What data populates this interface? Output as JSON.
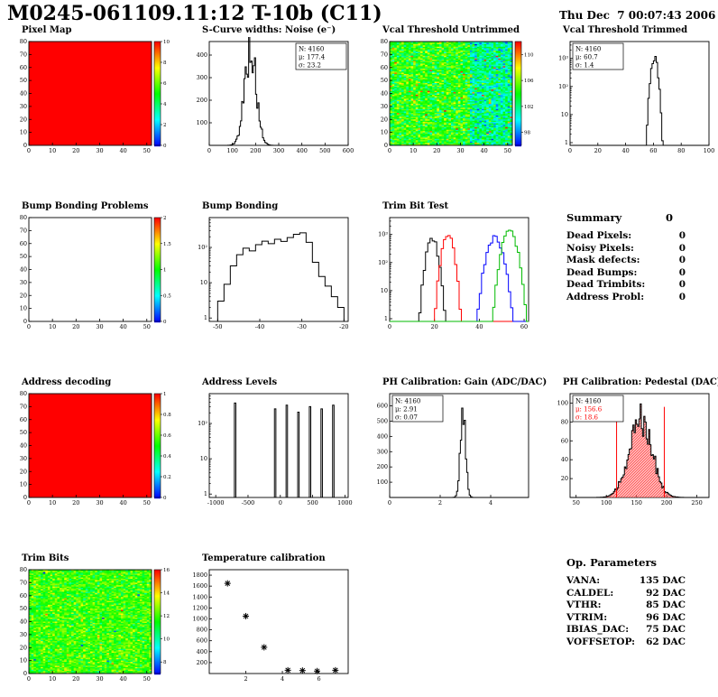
{
  "header": {
    "title": "M0245-061109.11:12 T-10b (C11)",
    "datetime": "Thu Dec  7 00:07:43 2006"
  },
  "summary": {
    "title": "Summary",
    "total": "0",
    "rows": [
      {
        "label": "Dead Pixels:",
        "value": "0"
      },
      {
        "label": "Noisy Pixels:",
        "value": "0"
      },
      {
        "label": "Mask defects:",
        "value": "0"
      },
      {
        "label": "Dead Bumps:",
        "value": "0"
      },
      {
        "label": "Dead Trimbits:",
        "value": "0"
      },
      {
        "label": "Address Probl:",
        "value": "0"
      }
    ]
  },
  "op_parameters": {
    "title": "Op. Parameters",
    "rows": [
      {
        "label": "VANA:",
        "value": "135 DAC"
      },
      {
        "label": "CALDEL:",
        "value": "92 DAC"
      },
      {
        "label": "VTHR:",
        "value": "85 DAC"
      },
      {
        "label": "VTRIM:",
        "value": "96 DAC"
      },
      {
        "label": "IBIAS_DAC:",
        "value": "75 DAC"
      },
      {
        "label": "VOFFSETOP:",
        "value": "62 DAC"
      }
    ]
  },
  "colors": {
    "accent_red": "#ff0000"
  },
  "chart_data": [
    {
      "id": "pixel-map",
      "title": "Pixel Map",
      "type": "heatmap",
      "fill": "solid",
      "x_range": [
        0,
        52
      ],
      "y_range": [
        0,
        80
      ],
      "xticks": [
        0,
        10,
        20,
        30,
        40,
        50
      ],
      "yticks": [
        0,
        10,
        20,
        30,
        40,
        50,
        60,
        70,
        80
      ],
      "colorbar": {
        "range": [
          0,
          10
        ],
        "ticks": [
          0,
          2,
          4,
          6,
          8,
          10
        ]
      }
    },
    {
      "id": "scurve-noise",
      "title": "S-Curve widths: Noise (e⁻)",
      "type": "hist",
      "x_range": [
        0,
        600
      ],
      "y_range": [
        0,
        460
      ],
      "xticks": [
        0,
        100,
        200,
        300,
        400,
        500,
        600
      ],
      "yticks": [
        100,
        200,
        300,
        400
      ],
      "bins": 120,
      "seed": 5,
      "gauss": {
        "mu": 177.4,
        "sigma": 25,
        "peak": 430
      },
      "stats": {
        "N": "4160",
        "mu": "177.4",
        "sigma": "23.2",
        "pos": "tr"
      }
    },
    {
      "id": "vcal-threshold-untrimmed",
      "title": "Vcal Threshold Untrimmed",
      "type": "heatmap",
      "fill": "noise-vcal",
      "seed": 11,
      "x_range": [
        0,
        52
      ],
      "y_range": [
        0,
        80
      ],
      "xticks": [
        0,
        10,
        20,
        30,
        40,
        50
      ],
      "yticks": [
        0,
        10,
        20,
        30,
        40,
        50,
        60,
        70,
        80
      ],
      "colorbar": {
        "range": [
          96,
          112
        ],
        "ticks": [
          98,
          102,
          106,
          110
        ]
      }
    },
    {
      "id": "vcal-threshold-trimmed",
      "title": "Vcal Threshold Trimmed",
      "type": "hist",
      "ylog": true,
      "x_range": [
        0,
        100
      ],
      "y_range": [
        0.8,
        4000
      ],
      "xticks": [
        0,
        20,
        40,
        60,
        80,
        100
      ],
      "yticks_log": [
        "1",
        "10",
        "10²",
        "10³"
      ],
      "bins": 100,
      "seed": 6,
      "gauss": {
        "mu": 60.7,
        "sigma": 1.6,
        "peak": 1100
      },
      "stats": {
        "N": "4160",
        "mu": "60.7",
        "sigma": "1.4",
        "pos": "tl"
      }
    },
    {
      "id": "bump-bonding-problems",
      "title": "Bump Bonding Problems",
      "type": "heatmap",
      "fill": "empty",
      "x_range": [
        0,
        52
      ],
      "y_range": [
        0,
        80
      ],
      "xticks": [
        0,
        10,
        20,
        30,
        40,
        50
      ],
      "yticks": [
        0,
        10,
        20,
        30,
        40,
        50,
        60,
        70,
        80
      ],
      "colorbar": {
        "range": [
          0,
          2
        ],
        "ticks": [
          0,
          0.5,
          1,
          1.5,
          2
        ]
      }
    },
    {
      "id": "bump-bonding",
      "title": "Bump Bonding",
      "type": "steps",
      "ylog": true,
      "x_range": [
        -52,
        -19
      ],
      "y_range": [
        0.8,
        700
      ],
      "xticks": [
        -50,
        -40,
        -30,
        -20
      ],
      "yticks_log": [
        "1",
        "10",
        "10²"
      ],
      "steps": [
        [
          -50,
          3
        ],
        [
          -48.5,
          9
        ],
        [
          -47,
          30
        ],
        [
          -45.5,
          62
        ],
        [
          -44,
          95
        ],
        [
          -42.5,
          80
        ],
        [
          -41,
          120
        ],
        [
          -39.5,
          150
        ],
        [
          -38,
          128
        ],
        [
          -36.5,
          170
        ],
        [
          -35,
          148
        ],
        [
          -33.5,
          190
        ],
        [
          -32,
          235
        ],
        [
          -30.5,
          260
        ],
        [
          -29,
          140
        ],
        [
          -27.5,
          38
        ],
        [
          -26,
          15
        ],
        [
          -24.5,
          8
        ],
        [
          -23,
          4
        ],
        [
          -21.5,
          2
        ]
      ]
    },
    {
      "id": "trim-bit-test",
      "title": "Trim Bit Test",
      "type": "multihist",
      "ylog": true,
      "x_range": [
        0,
        62
      ],
      "y_range": [
        0.8,
        4000
      ],
      "xticks": [
        0,
        20,
        40,
        60
      ],
      "yticks_log": [
        "1",
        "10",
        "10²",
        "10³"
      ],
      "bins": 62,
      "seed": 9,
      "series": [
        {
          "name": "series-black",
          "color": "#000000",
          "mu": 19,
          "sigma": 1.6,
          "peak": 700
        },
        {
          "name": "series-red",
          "color": "#ff0000",
          "mu": 26,
          "sigma": 1.6,
          "peak": 950
        },
        {
          "name": "series-blue",
          "color": "#0000ff",
          "mu": 47,
          "sigma": 2.2,
          "peak": 800
        },
        {
          "name": "series-green",
          "color": "#00bb00",
          "mu": 53.5,
          "sigma": 2.0,
          "peak": 1400
        }
      ]
    },
    {
      "id": "address-decoding",
      "title": "Address decoding",
      "type": "heatmap",
      "fill": "solid",
      "x_range": [
        0,
        52
      ],
      "y_range": [
        0,
        80
      ],
      "xticks": [
        0,
        10,
        20,
        30,
        40,
        50
      ],
      "yticks": [
        0,
        10,
        20,
        30,
        40,
        50,
        60,
        70,
        80
      ],
      "colorbar": {
        "range": [
          0,
          1
        ],
        "ticks": [
          0,
          0.2,
          0.4,
          0.6,
          0.8,
          1
        ]
      }
    },
    {
      "id": "address-levels",
      "title": "Address Levels",
      "type": "spikes",
      "ylog": true,
      "x_range": [
        -1100,
        1050
      ],
      "y_range": [
        0.8,
        700
      ],
      "xticks": [
        -1000,
        -500,
        0,
        500,
        1000
      ],
      "yticks_log": [
        "1",
        "10",
        "10²"
      ],
      "spikes": [
        [
          -700,
          380
        ],
        [
          -80,
          260
        ],
        [
          100,
          330
        ],
        [
          280,
          210
        ],
        [
          460,
          300
        ],
        [
          640,
          260
        ],
        [
          820,
          330
        ]
      ]
    },
    {
      "id": "ph-calibration-gain",
      "title": "PH Calibration: Gain (ADC/DAC)",
      "type": "hist",
      "x_range": [
        0,
        5.5
      ],
      "y_range": [
        0,
        680
      ],
      "xticks": [
        0,
        2,
        4
      ],
      "yticks": [
        100,
        200,
        300,
        400,
        500,
        600
      ],
      "bins": 110,
      "seed": 8,
      "gauss": {
        "mu": 2.91,
        "sigma": 0.1,
        "peak": 620
      },
      "stats": {
        "N": "4160",
        "mu": "2.91",
        "sigma": "0.07",
        "pos": "tl"
      }
    },
    {
      "id": "ph-calibration-pedestal",
      "title": "PH Calibration: Pedestal (DAC)",
      "type": "hist",
      "x_range": [
        40,
        270
      ],
      "y_range": [
        0,
        110
      ],
      "xticks": [
        50,
        100,
        150,
        200,
        250
      ],
      "yticks": [
        20,
        40,
        60,
        80,
        100
      ],
      "bins": 115,
      "seed": 12,
      "gauss": {
        "mu": 156.6,
        "sigma": 18.6,
        "peak": 88
      },
      "fill_color": "rgba(255,120,120,0.55)",
      "hatch": "#ff0000",
      "markers": {
        "color": "#ff0000",
        "x": [
          117,
          196
        ],
        "height": 96
      },
      "stats": {
        "N": "4160",
        "mu": "156.6",
        "sigma": "18.6",
        "pos": "tl",
        "accent": "#ff0000"
      }
    },
    {
      "id": "trim-bits",
      "title": "Trim Bits",
      "type": "heatmap",
      "fill": "noise-trim",
      "seed": 23,
      "x_range": [
        0,
        52
      ],
      "y_range": [
        0,
        80
      ],
      "xticks": [
        0,
        10,
        20,
        30,
        40,
        50
      ],
      "yticks": [
        0,
        10,
        20,
        30,
        40,
        50,
        60,
        70,
        80
      ],
      "colorbar": {
        "range": [
          7,
          16
        ],
        "ticks": [
          8,
          10,
          12,
          14,
          16
        ]
      }
    },
    {
      "id": "temperature-calibration",
      "title": "Temperature calibration",
      "type": "scatter",
      "x_range": [
        0,
        7.6
      ],
      "y_range": [
        0,
        1900
      ],
      "xticks": [
        2,
        4,
        6
      ],
      "yticks": [
        200,
        400,
        600,
        800,
        1000,
        1200,
        1400,
        1600,
        1800
      ],
      "points": [
        [
          1,
          1650
        ],
        [
          2,
          1050
        ],
        [
          3,
          480
        ],
        [
          4.3,
          60
        ],
        [
          5.1,
          55
        ],
        [
          5.9,
          45
        ],
        [
          6.9,
          60
        ]
      ]
    }
  ]
}
